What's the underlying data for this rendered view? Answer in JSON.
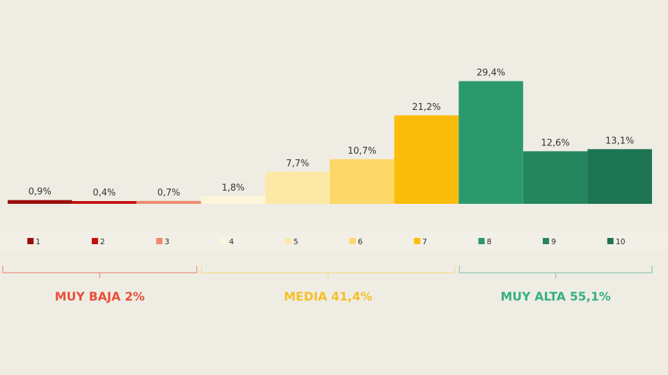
{
  "chart_data": {
    "type": "bar",
    "categories": [
      "1",
      "2",
      "3",
      "4",
      "5",
      "6",
      "7",
      "8",
      "9",
      "10"
    ],
    "values": [
      0.9,
      0.4,
      0.7,
      1.8,
      7.7,
      10.7,
      21.2,
      29.4,
      12.6,
      13.1
    ],
    "value_labels": [
      "0,9%",
      "0,4%",
      "0,7%",
      "1,8%",
      "7,7%",
      "10,7%",
      "21,2%",
      "29,4%",
      "12,6%",
      "13,1%"
    ],
    "colors": [
      "#9b0d0d",
      "#c3120f",
      "#ee8a6e",
      "#fcf5d8",
      "#fde9a6",
      "#fdd767",
      "#fbbd0c",
      "#2a9a6e",
      "#24865e",
      "#1c7452"
    ],
    "ylim": [
      0,
      30
    ],
    "title": "",
    "xlabel": "",
    "ylabel": "",
    "legend": "bottom",
    "grid": false,
    "groups": [
      {
        "label": "MUY BAJA 2%",
        "from": 0,
        "to": 2,
        "color": "#e8503a",
        "bracket_color": "#ea8f7d"
      },
      {
        "label": "MEDIA 41,4%",
        "from": 3,
        "to": 6,
        "color": "#f6bf2a",
        "bracket_color": "#f3d88a"
      },
      {
        "label": "MUY ALTA 55,1%",
        "from": 7,
        "to": 9,
        "color": "#35b083",
        "bracket_color": "#8ac8ad"
      }
    ]
  }
}
